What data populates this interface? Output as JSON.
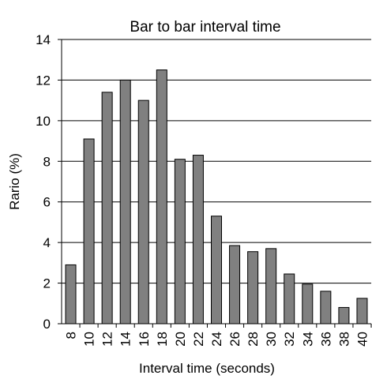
{
  "chart_data": {
    "type": "bar",
    "title": "Bar to bar interval  time",
    "xlabel": "Interval time (seconds)",
    "ylabel": "Rario (%)",
    "ylim": [
      0,
      14
    ],
    "yticks": [
      0,
      2,
      4,
      6,
      8,
      10,
      12,
      14
    ],
    "grid": true,
    "categories": [
      "8",
      "10",
      "12",
      "14",
      "16",
      "18",
      "20",
      "22",
      "24",
      "26",
      "28",
      "30",
      "32",
      "34",
      "36",
      "38",
      "40"
    ],
    "values": [
      2.9,
      9.1,
      11.4,
      12.0,
      11.0,
      12.5,
      8.1,
      8.3,
      5.3,
      3.85,
      3.55,
      3.7,
      2.45,
      1.95,
      1.6,
      0.8,
      1.25
    ],
    "bar_color": "#808080"
  }
}
